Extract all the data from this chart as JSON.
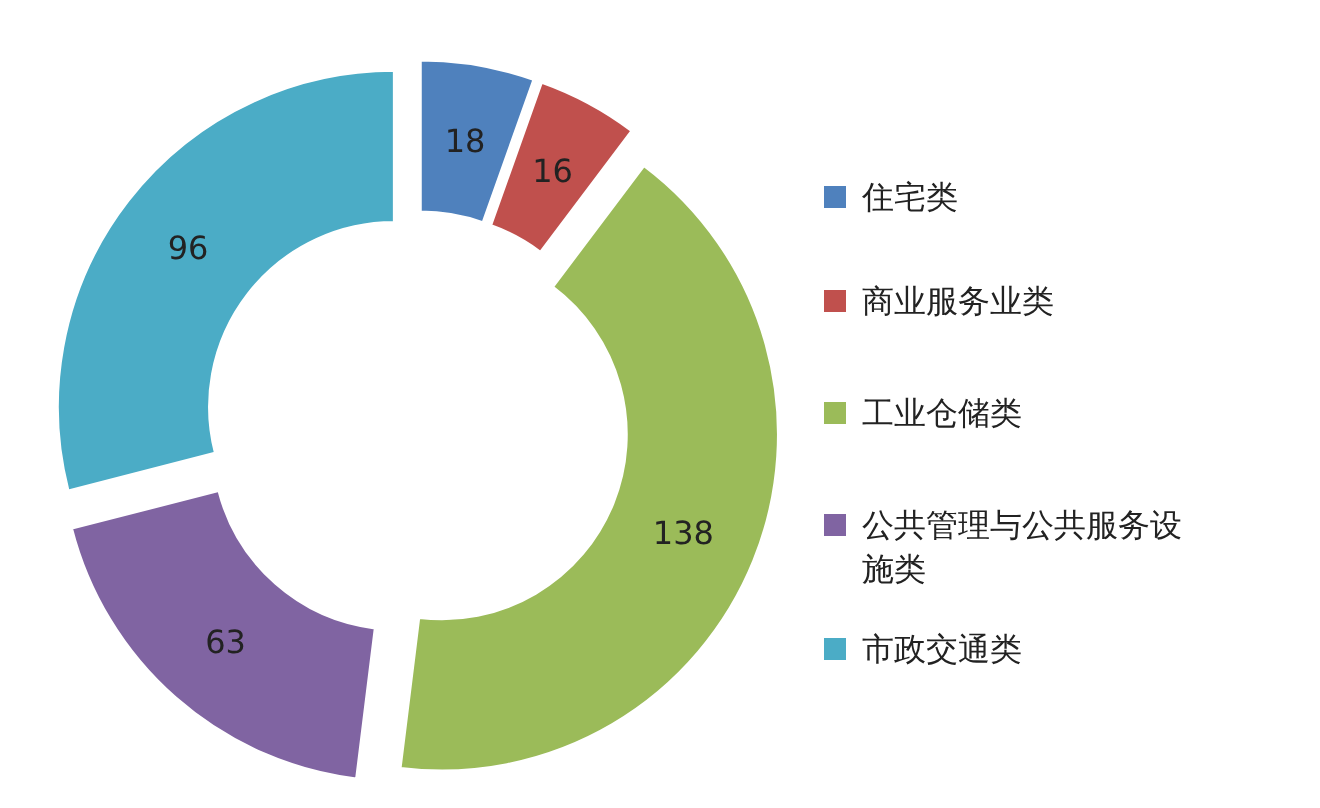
{
  "chart_data": {
    "type": "donut",
    "categories": [
      "住宅类",
      "商业服务业类",
      "工业仓储类",
      "公共管理与公共服务设施类",
      "市政交通类"
    ],
    "values": [
      18,
      16,
      138,
      63,
      96
    ],
    "colors": [
      "#4f81bd",
      "#c0504d",
      "#9bbb59",
      "#8064a2",
      "#4bacc6"
    ],
    "data_labels": true,
    "legend": "right"
  }
}
